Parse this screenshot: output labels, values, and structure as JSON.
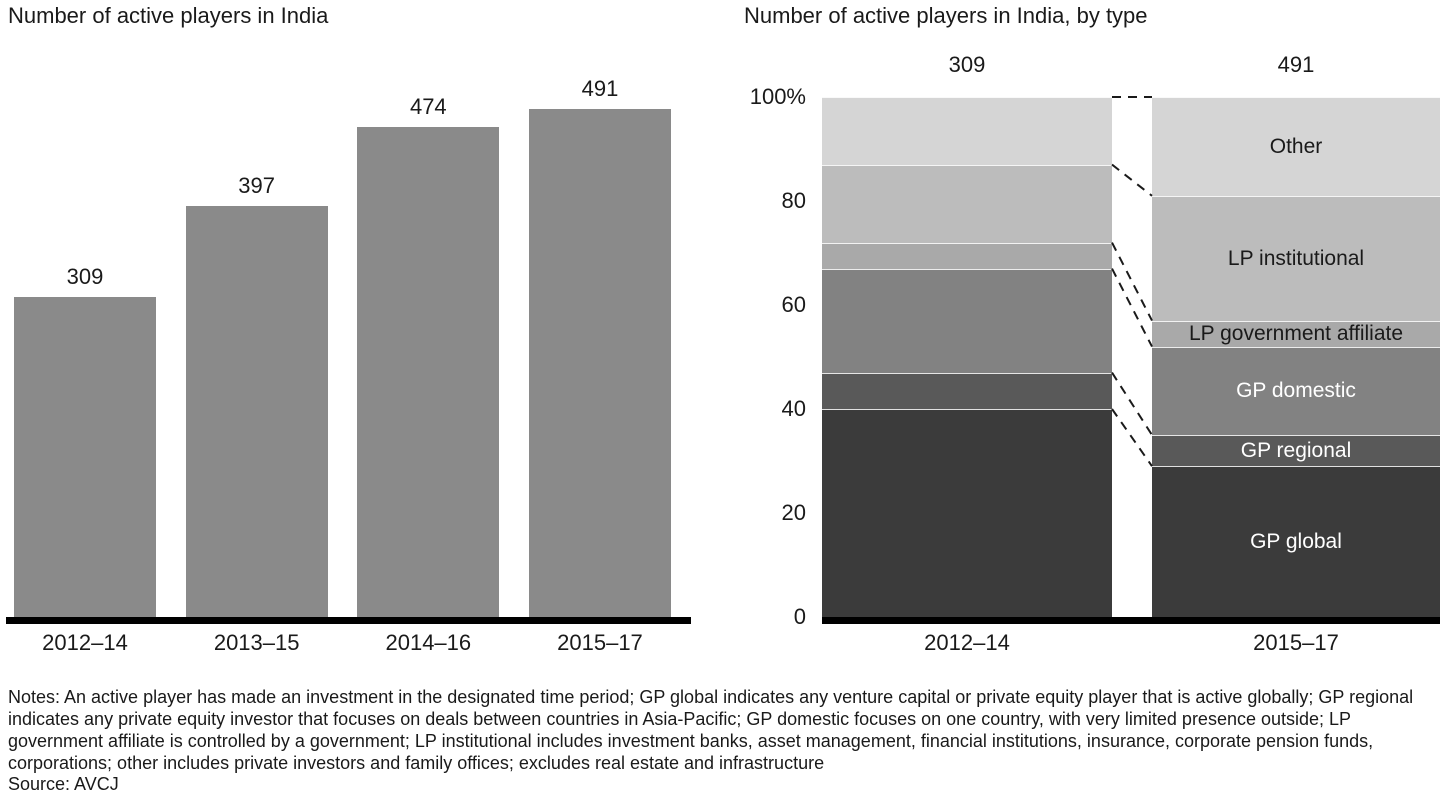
{
  "page": {
    "notes": "Notes: An active player has made an investment in the designated time period; GP global indicates any venture capital or private equity player that is active globally; GP regional indicates any private equity investor that focuses on deals between countries in Asia-Pacific; GP domestic focuses on one country, with very limited presence outside; LP government affiliate is controlled by a government; LP institutional includes investment banks, asset management, financial institutions, insurance, corporate pension funds, corporations; other includes private investors and family offices; excludes real estate and infrastructure",
    "source": "Source: AVCJ"
  },
  "chart_data": [
    {
      "type": "bar",
      "title": "Number of active players in India",
      "categories": [
        "2012–14",
        "2013–15",
        "2014–16",
        "2015–17"
      ],
      "values": [
        309,
        397,
        474,
        491
      ],
      "value_labels_shown": true,
      "bar_color": "#8a8a8a",
      "axis_color": "#000000",
      "ylim": [
        0,
        491
      ],
      "grid": false,
      "legend": "none"
    },
    {
      "type": "bar",
      "subtype": "stacked-100-percent",
      "title": "Number of active players in India, by type",
      "categories": [
        "2012–14",
        "2015–17"
      ],
      "totals": [
        309,
        491
      ],
      "unit": "%",
      "ylim": [
        0,
        100
      ],
      "y_ticks": [
        {
          "label": "100%",
          "value": 100
        },
        {
          "label": "80",
          "value": 80
        },
        {
          "label": "60",
          "value": 60
        },
        {
          "label": "40",
          "value": 40
        },
        {
          "label": "20",
          "value": 20
        },
        {
          "label": "0",
          "value": 0
        }
      ],
      "series": [
        {
          "name": "GP global",
          "values": [
            40,
            29
          ],
          "color": "#3b3b3b",
          "label_color": "#ffffff"
        },
        {
          "name": "GP regional",
          "values": [
            7,
            6
          ],
          "color": "#595959",
          "label_color": "#ffffff"
        },
        {
          "name": "GP domestic",
          "values": [
            20,
            17
          ],
          "color": "#828282",
          "label_color": "#ffffff"
        },
        {
          "name": "LP government affiliate",
          "values": [
            5,
            5
          ],
          "color": "#a9a9a9",
          "label_color": "#1a1a1a"
        },
        {
          "name": "LP institutional",
          "values": [
            15,
            24
          ],
          "color": "#bcbcbc",
          "label_color": "#1a1a1a"
        },
        {
          "name": "Other",
          "values": [
            13,
            19
          ],
          "color": "#d5d5d5",
          "label_color": "#1a1a1a"
        }
      ],
      "segment_labels_on_bar": "2015–17",
      "connector_style": "dashed",
      "connector_color": "#1a1a1a",
      "grid": false,
      "legend": "in-bar-labels"
    }
  ]
}
